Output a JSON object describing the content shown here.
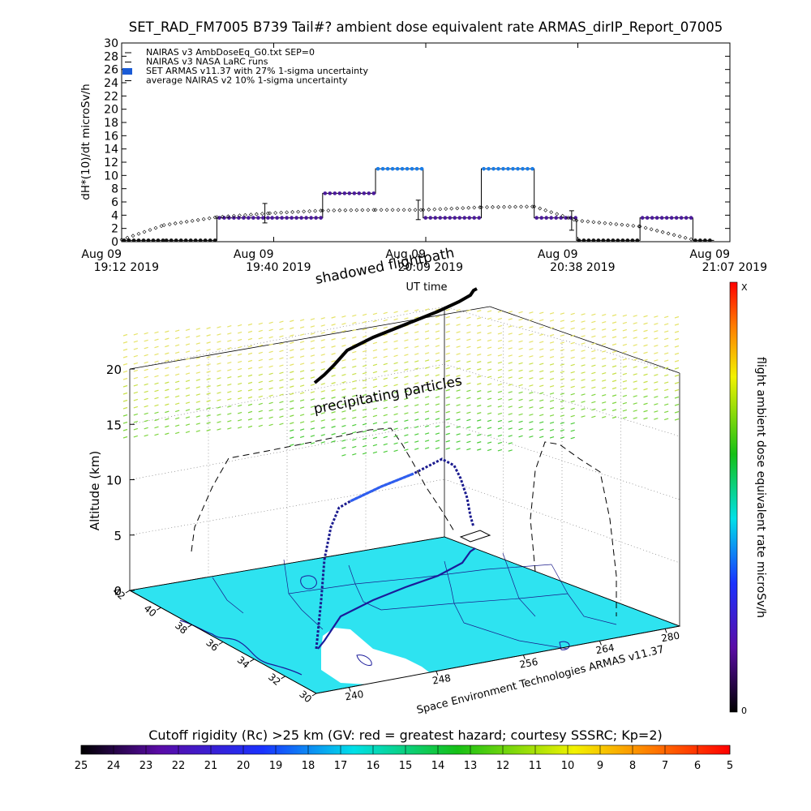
{
  "title": "SET_RAD_FM7005  B739 Tail#? ambient dose equivalent rate ARMAS_dirIP_Report_07005",
  "top_chart": {
    "ylabel": "dH*(10)/dt microSv/h",
    "xlabel": "UT time",
    "yticks": [
      "0",
      "2",
      "4",
      "6",
      "8",
      "10",
      "12",
      "14",
      "16",
      "18",
      "20",
      "22",
      "24",
      "26",
      "28",
      "30"
    ],
    "xticks": [
      {
        "date": "Aug 09",
        "time": "19:12 2019"
      },
      {
        "date": "Aug 09",
        "time": "19:40 2019"
      },
      {
        "date": "Aug 09",
        "time": "20:09 2019"
      },
      {
        "date": "Aug 09",
        "time": "20:38 2019"
      },
      {
        "date": "Aug 09",
        "time": "21:07 2019"
      }
    ],
    "legend": [
      {
        "label": "NAIRAS v3 AmbDoseEq_G0.txt SEP=0",
        "color": "#000000"
      },
      {
        "label": "NAIRAS v3 NASA LaRC runs",
        "color": "#000000"
      },
      {
        "label": "SET ARMAS v11.37 with 27% 1-sigma uncertainty",
        "color": "#1a5bd6"
      },
      {
        "label": "average NAIRAS v2 10% 1-sigma uncertainty",
        "color": "#000000"
      }
    ]
  },
  "scene": {
    "shadowed_label": "shadowed flightpath",
    "precip_label": "precipitating particles",
    "z_axis_label": "Altitude (km)",
    "z_ticks": [
      "0",
      "5",
      "10",
      "15",
      "20"
    ],
    "lat_ticks": [
      "42",
      "40",
      "38",
      "36",
      "34",
      "32",
      "30"
    ],
    "lon_ticks": [
      "240",
      "248",
      "256",
      "264",
      "280"
    ],
    "credit": "Space Environment Technologies ARMAS v11.37",
    "right_label": "flight ambient dose equivalent rate microSv/h",
    "right_top": "X",
    "right_bottom": "0"
  },
  "colorbar": {
    "title": "Cutoff rigidity (Rc) >25 km (GV: red = greatest hazard; courtesy SSSRC; Kp=2)",
    "ticks": [
      "25",
      "24",
      "23",
      "22",
      "21",
      "20",
      "19",
      "18",
      "17",
      "16",
      "15",
      "14",
      "13",
      "12",
      "11",
      "10",
      "9",
      "8",
      "7",
      "6",
      "5"
    ]
  },
  "chart_data": [
    {
      "type": "line",
      "title": "SET_RAD_FM7005  B739 Tail#? ambient dose equivalent rate ARMAS_dirIP_Report_07005",
      "xlabel": "UT time",
      "ylabel": "dH*(10)/dt microSv/h",
      "ylim": [
        0,
        30
      ],
      "xlim": [
        "19:12",
        "21:07"
      ],
      "x": [
        "19:12",
        "19:20",
        "19:30",
        "19:40",
        "19:50",
        "20:00",
        "20:09",
        "20:20",
        "20:30",
        "20:38",
        "20:50",
        "21:00"
      ],
      "series": [
        {
          "name": "SET ARMAS v11.37 with 27% 1-sigma uncertainty",
          "values": [
            0.2,
            0.2,
            3.6,
            3.6,
            7.3,
            11.0,
            3.6,
            11.0,
            3.6,
            0.2,
            3.6,
            0.2
          ]
        },
        {
          "name": "average NAIRAS v2 10% 1-sigma uncertainty",
          "values": [
            0.3,
            2.5,
            3.7,
            4.3,
            4.7,
            4.8,
            4.8,
            5.2,
            5.3,
            3.2,
            2.3,
            0.3
          ]
        }
      ]
    },
    {
      "type": "heatmap",
      "title": "Cutoff rigidity (Rc) >25 km (GV: red = greatest hazard; courtesy SSSRC; Kp=2)",
      "range": [
        25,
        5
      ]
    }
  ]
}
